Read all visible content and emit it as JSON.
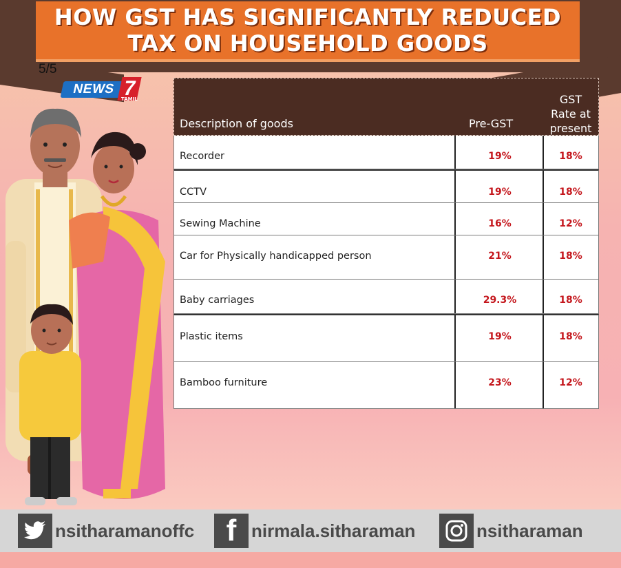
{
  "header": {
    "title_line1": "HOW GST HAS SIGNIFICANTLY REDUCED",
    "title_line2": "TAX ON HOUSEHOLD GOODS",
    "page_indicator": "5/5"
  },
  "logo": {
    "news": "NEWS",
    "seven": "7",
    "tamil": "TAMIL"
  },
  "table": {
    "columns": {
      "description": "Description of goods",
      "pre_gst": "Pre-GST",
      "gst_line1": "GST",
      "gst_line2": "Rate at",
      "gst_line3": "present"
    },
    "rows": [
      {
        "description": "Recorder",
        "pre_gst": "19%",
        "present": "18%"
      },
      {
        "description": "CCTV",
        "pre_gst": "19%",
        "present": "18%"
      },
      {
        "description": "Sewing Machine",
        "pre_gst": "16%",
        "present": "12%"
      },
      {
        "description": "Car for Physically handicapped person",
        "pre_gst": "21%",
        "present": "18%"
      },
      {
        "description": "Baby carriages",
        "pre_gst": "29.3%",
        "present": "18%"
      },
      {
        "description": "Plastic items",
        "pre_gst": "19%",
        "present": "18%"
      },
      {
        "description": "Bamboo furniture",
        "pre_gst": "23%",
        "present": "12%"
      }
    ]
  },
  "footer": {
    "twitter": {
      "icon": "twitter-icon",
      "handle": "nsitharamanoffc"
    },
    "facebook": {
      "icon": "facebook-icon",
      "handle": "nirmala.sitharaman"
    },
    "instagram": {
      "icon": "instagram-icon",
      "handle": "nsitharaman"
    }
  },
  "colors": {
    "title_bg": "#e8722a",
    "header_bg": "#4b2c22",
    "rate_text": "#c4161c",
    "footer_bg": "#d6d6d6"
  }
}
